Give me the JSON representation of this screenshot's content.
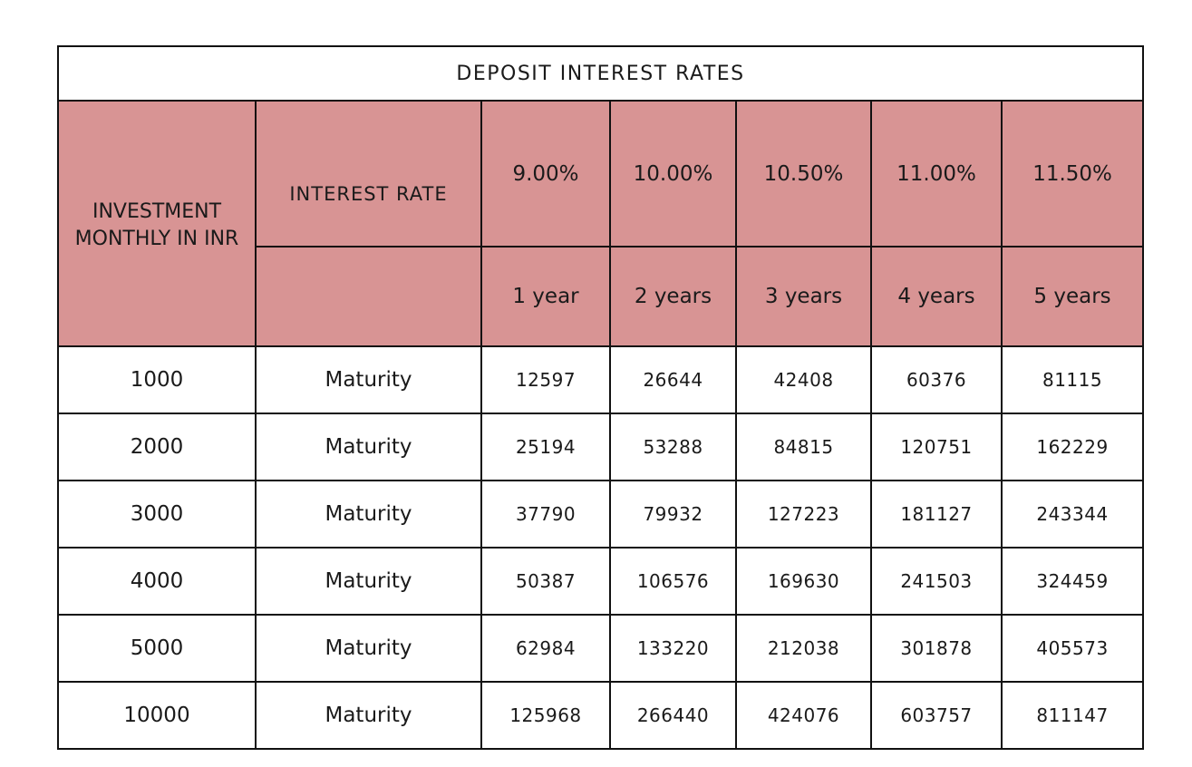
{
  "title": "DEPOSIT INTEREST RATES",
  "investment_header": "INVESTMENT MONTHLY IN INR",
  "interest_rate_label": "INTEREST RATE",
  "rates": [
    "9.00%",
    "10.00%",
    "10.50%",
    "11.00%",
    "11.50%"
  ],
  "durations": [
    "1 year",
    "2 years",
    "3 years",
    "4 years",
    "5 years"
  ],
  "rows": [
    {
      "amount": "1000",
      "label": "Maturity",
      "values": [
        "12597",
        "26644",
        "42408",
        "60376",
        "81115"
      ]
    },
    {
      "amount": "2000",
      "label": "Maturity",
      "values": [
        "25194",
        "53288",
        "84815",
        "120751",
        "162229"
      ]
    },
    {
      "amount": "3000",
      "label": "Maturity",
      "values": [
        "37790",
        "79932",
        "127223",
        "181127",
        "243344"
      ]
    },
    {
      "amount": "4000",
      "label": "Maturity",
      "values": [
        "50387",
        "106576",
        "169630",
        "241503",
        "324459"
      ]
    },
    {
      "amount": "5000",
      "label": "Maturity",
      "values": [
        "62984",
        "133220",
        "212038",
        "301878",
        "405573"
      ]
    },
    {
      "amount": "10000",
      "label": "Maturity",
      "values": [
        "125968",
        "266440",
        "424076",
        "603757",
        "811147"
      ]
    }
  ],
  "colors": {
    "header_fill": "#d89494",
    "border": "#111111"
  }
}
